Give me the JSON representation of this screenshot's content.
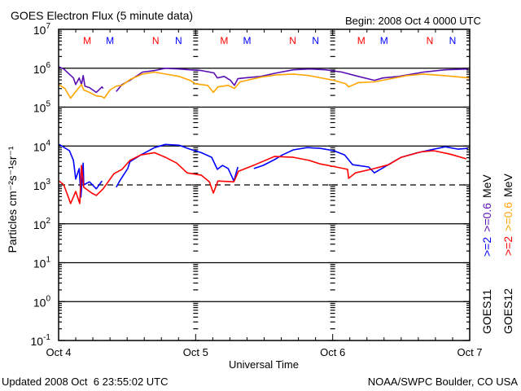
{
  "chart_data": {
    "type": "line",
    "title": "GOES Electron Flux (5 minute data)",
    "begin_label": "Begin: 2008 Oct 4 0000 UTC",
    "xlabel": "Universal Time",
    "ylabel": "Particles cm⁻²s⁻¹sr⁻¹",
    "x_unit": "hours since 2008 Oct 4 0000 UTC",
    "xlim": [
      0,
      72
    ],
    "x_ticks": [
      {
        "value": 0,
        "label": "Oct 4"
      },
      {
        "value": 24,
        "label": "Oct 5"
      },
      {
        "value": 48,
        "label": "Oct 6"
      },
      {
        "value": 72,
        "label": "Oct 7"
      }
    ],
    "y_scale": "log",
    "ylim_log10": [
      -1,
      7
    ],
    "y_tick_base": "10",
    "y_ticks_log10": [
      7,
      6,
      5,
      4,
      3,
      2,
      1,
      0,
      -1
    ],
    "solid_gridlines_log10": [
      6,
      5,
      4,
      2,
      1,
      0
    ],
    "dashed_gridlines_log10": [
      3
    ],
    "grid": true,
    "markers": [
      {
        "hour": 5,
        "label": "M",
        "color": "#ff0000"
      },
      {
        "hour": 9,
        "label": "M",
        "color": "#0000ff"
      },
      {
        "hour": 17,
        "label": "N",
        "color": "#ff0000"
      },
      {
        "hour": 21,
        "label": "N",
        "color": "#0000ff"
      },
      {
        "hour": 29,
        "label": "M",
        "color": "#ff0000"
      },
      {
        "hour": 33,
        "label": "M",
        "color": "#0000ff"
      },
      {
        "hour": 41,
        "label": "N",
        "color": "#ff0000"
      },
      {
        "hour": 45,
        "label": "N",
        "color": "#0000ff"
      },
      {
        "hour": 53,
        "label": "M",
        "color": "#ff0000"
      },
      {
        "hour": 57,
        "label": "M",
        "color": "#0000ff"
      },
      {
        "hour": 65,
        "label": "N",
        "color": "#ff0000"
      },
      {
        "hour": 69,
        "label": "N",
        "color": "#0000ff"
      }
    ],
    "legend": {
      "placement": "right-vertical",
      "goes11": {
        "sat": "GOES11",
        "e2": ">=2",
        "e06": ">=0.6",
        "unit": "MeV"
      },
      "goes12": {
        "sat": "GOES12",
        "e2": ">=2",
        "e06": ">=0.6",
        "unit": "MeV"
      }
    },
    "series": [
      {
        "name": "GOES11 >=0.6 MeV",
        "color": "#5a0fb4",
        "values_log10": [
          [
            0,
            6.04
          ],
          [
            0.9,
            5.98
          ],
          [
            2.6,
            5.75
          ],
          [
            3.0,
            5.58
          ],
          [
            3.6,
            5.75
          ],
          [
            4.0,
            5.58
          ],
          [
            4.3,
            5.81
          ],
          [
            4.6,
            5.54
          ],
          [
            5.4,
            5.5
          ],
          [
            6.6,
            5.38
          ],
          [
            7.6,
            5.52
          ],
          [
            7.8,
            5.48
          ],
          null,
          [
            10.1,
            5.4
          ],
          [
            11.1,
            5.58
          ],
          [
            12.5,
            5.69
          ],
          [
            14.7,
            5.9
          ],
          [
            16.8,
            5.94
          ],
          [
            18.7,
            6.0
          ],
          [
            21.1,
            5.98
          ],
          [
            23.0,
            5.96
          ],
          [
            25.0,
            5.94
          ],
          [
            27.2,
            5.88
          ],
          [
            27.8,
            5.75
          ],
          [
            29.0,
            5.79
          ],
          [
            30.1,
            5.69
          ],
          [
            30.8,
            5.56
          ],
          [
            31.4,
            5.73
          ],
          [
            32.5,
            5.75
          ],
          [
            35.4,
            5.79
          ],
          [
            38.2,
            5.88
          ],
          [
            41.1,
            5.96
          ],
          [
            43.9,
            5.98
          ],
          [
            46.8,
            5.96
          ],
          [
            49.6,
            5.9
          ],
          [
            52.5,
            5.79
          ],
          [
            55.3,
            5.69
          ],
          [
            56.8,
            5.75
          ],
          [
            59.6,
            5.79
          ],
          [
            63.9,
            5.9
          ],
          [
            67.7,
            5.96
          ],
          [
            71.7,
            5.98
          ]
        ]
      },
      {
        "name": "GOES12 >=0.6 MeV",
        "color": "#ffa500",
        "values_log10": [
          [
            0,
            5.58
          ],
          [
            1.1,
            5.48
          ],
          [
            2.1,
            5.23
          ],
          [
            2.9,
            5.38
          ],
          [
            4.0,
            5.58
          ],
          [
            4.4,
            5.44
          ],
          [
            5.4,
            5.38
          ],
          [
            6.6,
            5.29
          ],
          [
            7.6,
            5.27
          ],
          [
            8.0,
            5.23
          ],
          [
            9.0,
            5.44
          ],
          [
            10.1,
            5.54
          ],
          [
            11.1,
            5.56
          ],
          [
            12.5,
            5.71
          ],
          [
            14.7,
            5.85
          ],
          [
            16.8,
            5.9
          ],
          [
            18.7,
            5.85
          ],
          [
            21.1,
            5.79
          ],
          [
            23.0,
            5.69
          ],
          [
            24.0,
            5.6
          ],
          [
            26.1,
            5.56
          ],
          [
            27.1,
            5.38
          ],
          [
            27.9,
            5.52
          ],
          [
            29.7,
            5.56
          ],
          [
            30.8,
            5.48
          ],
          [
            31.8,
            5.65
          ],
          [
            35.4,
            5.77
          ],
          [
            38.2,
            5.83
          ],
          [
            41.1,
            5.85
          ],
          [
            43.9,
            5.81
          ],
          [
            48.2,
            5.69
          ],
          [
            50.3,
            5.6
          ],
          [
            50.8,
            5.52
          ],
          [
            52.5,
            5.63
          ],
          [
            55.3,
            5.65
          ],
          [
            58.2,
            5.73
          ],
          [
            61.0,
            5.81
          ],
          [
            63.9,
            5.85
          ],
          [
            67.5,
            5.81
          ],
          [
            72.0,
            5.75
          ]
        ]
      },
      {
        "name": "GOES11 >=2 MeV",
        "color": "#0000ff",
        "values_log10": [
          [
            0.1,
            4.04
          ],
          [
            1.9,
            3.88
          ],
          [
            2.6,
            3.63
          ],
          [
            3.0,
            3.15
          ],
          [
            3.6,
            3.42
          ],
          [
            3.9,
            2.69
          ],
          [
            4.3,
            3.56
          ],
          [
            4.4,
            3.0
          ],
          [
            5.4,
            3.08
          ],
          [
            6.6,
            2.9
          ],
          [
            7.6,
            3.1
          ],
          null,
          [
            10.1,
            2.94
          ],
          [
            10.7,
            3.1
          ],
          [
            12.1,
            3.42
          ],
          [
            12.5,
            3.6
          ],
          [
            14.4,
            3.77
          ],
          [
            16.8,
            3.96
          ],
          [
            18.7,
            4.04
          ],
          [
            21.1,
            4.02
          ],
          [
            23.0,
            3.92
          ],
          [
            25.0,
            3.83
          ],
          [
            26.8,
            3.71
          ],
          [
            27.8,
            3.4
          ],
          [
            28.7,
            3.5
          ],
          [
            29.7,
            3.42
          ],
          [
            30.7,
            3.1
          ],
          [
            31.4,
            3.46
          ],
          null,
          [
            34.2,
            3.42
          ],
          [
            35.8,
            3.5
          ],
          [
            37.8,
            3.65
          ],
          [
            39.2,
            3.77
          ],
          [
            41.1,
            3.9
          ],
          [
            43.5,
            3.96
          ],
          [
            45.8,
            3.94
          ],
          [
            48.2,
            3.88
          ],
          [
            50.1,
            3.77
          ],
          [
            51.5,
            3.52
          ],
          [
            54.3,
            3.46
          ],
          [
            55.3,
            3.31
          ],
          [
            58.2,
            3.56
          ],
          [
            60.0,
            3.71
          ],
          [
            62.9,
            3.83
          ],
          [
            67.7,
            3.98
          ],
          [
            70.0,
            3.92
          ],
          [
            71.7,
            3.94
          ]
        ]
      },
      {
        "name": "GOES12 >=2 MeV",
        "color": "#ff0000",
        "values_log10": [
          [
            0.1,
            3.1
          ],
          [
            0.9,
            3.0
          ],
          [
            1.6,
            2.73
          ],
          [
            2.1,
            2.52
          ],
          [
            3.0,
            2.83
          ],
          [
            3.7,
            2.52
          ],
          [
            4.0,
            3.5
          ],
          [
            4.4,
            2.94
          ],
          [
            5.8,
            2.79
          ],
          [
            6.6,
            2.73
          ],
          [
            7.8,
            2.9
          ],
          [
            9.7,
            3.29
          ],
          [
            11.1,
            3.4
          ],
          [
            12.5,
            3.63
          ],
          [
            14.4,
            3.77
          ],
          [
            16.8,
            3.83
          ],
          [
            18.7,
            3.71
          ],
          [
            20.7,
            3.56
          ],
          [
            22.5,
            3.31
          ],
          [
            25.0,
            3.25
          ],
          [
            26.4,
            3.08
          ],
          [
            27.1,
            2.79
          ],
          [
            27.9,
            3.1
          ],
          [
            30.7,
            3.08
          ],
          [
            31.5,
            3.35
          ],
          [
            34.4,
            3.52
          ],
          [
            37.8,
            3.73
          ],
          [
            41.1,
            3.71
          ],
          [
            43.9,
            3.63
          ],
          [
            45.8,
            3.54
          ],
          [
            48.6,
            3.46
          ],
          [
            50.6,
            3.4
          ],
          [
            50.8,
            3.17
          ],
          [
            52.0,
            3.31
          ],
          [
            55.3,
            3.42
          ],
          [
            57.8,
            3.52
          ],
          [
            60.0,
            3.71
          ],
          [
            63.5,
            3.85
          ],
          [
            65.7,
            3.88
          ],
          [
            68.6,
            3.79
          ],
          [
            71.4,
            3.67
          ]
        ]
      }
    ]
  },
  "footer": {
    "updated": "Updated 2008 Oct  6 23:55:02 UTC",
    "credit": "NOAA/SWPC Boulder, CO USA"
  }
}
